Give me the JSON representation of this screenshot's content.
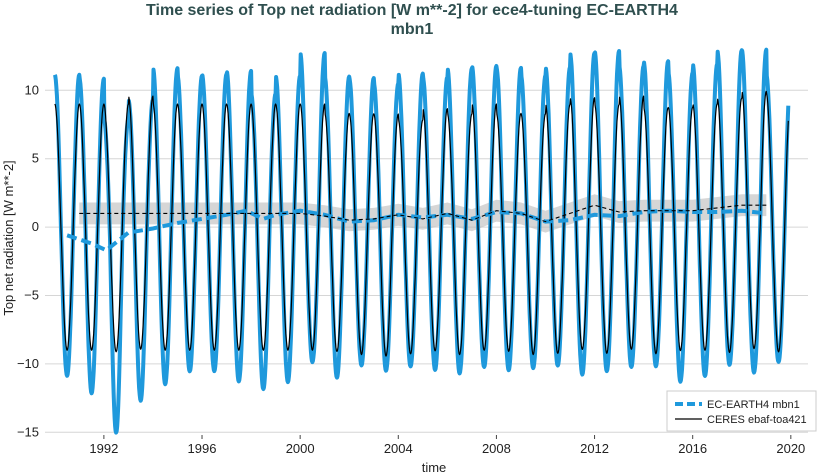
{
  "chart_data": {
    "type": "line",
    "title_line1": "Time series of Top net radiation [W m**-2] for ece4-tuning EC-EARTH4",
    "title_line2": "mbn1",
    "xlabel": "time",
    "ylabel": "Top net radiation [W m**-2]",
    "xlim": [
      1989.6,
      2020.7
    ],
    "ylim": [
      -15.2,
      12.8
    ],
    "xticks": [
      1992,
      1996,
      2000,
      2004,
      2008,
      2012,
      2016,
      2020
    ],
    "yticks": [
      -15,
      -10,
      -5,
      0,
      5,
      10
    ],
    "grid": "horizontal",
    "legend": "bottom-right",
    "colors": {
      "model": "#1f99dc",
      "obs": "#000000",
      "band": "#b4b4b4"
    },
    "series": [
      {
        "name": "EC-EARTH4 mbn1",
        "style": "thick-line",
        "monthly_start": 1990.0,
        "monthly_end": 2019.9,
        "seasonal_peaks": [
          11.1,
          11.0,
          8.7,
          9.7,
          11.6,
          11.0,
          11.1,
          11.4,
          10.0,
          11.1,
          12.4,
          11.0,
          10.8,
          10.5,
          11.1,
          10.9,
          11.5,
          11.6,
          11.5,
          11.0,
          11.5,
          12.5,
          12.6,
          11.6,
          11.9,
          11.3,
          11.8,
          12.6,
          12.7,
          11.0
        ],
        "seasonal_troughs": [
          -10.9,
          -12.0,
          -14.2,
          -12.3,
          -11.5,
          -10.6,
          -10.6,
          -11.3,
          -11.6,
          -11.3,
          -10.2,
          -11.0,
          -10.2,
          -10.5,
          -10.3,
          -10.5,
          -10.8,
          -10.4,
          -10.6,
          -10.4,
          -10.3,
          -11.0,
          -10.8,
          -10.4,
          -10.4,
          -11.3,
          -11.0,
          -10.4,
          -10.9,
          -10.0
        ]
      },
      {
        "name": "EC-EARTH4 mbn1",
        "style": "dashed-annual-mean",
        "x": [
          1990.5,
          1991.5,
          1992.1,
          1993.0,
          1994.0,
          1995.0,
          1996.0,
          1997.0,
          1997.8,
          1998.5,
          1999.0,
          2000.0,
          2001.0,
          2002.0,
          2003.0,
          2004.0,
          2005.0,
          2006.0,
          2007.0,
          2008.0,
          2009.0,
          2010.0,
          2011.0,
          2012.0,
          2013.0,
          2014.0,
          2015.0,
          2016.0,
          2017.0,
          2018.0,
          2019.0
        ],
        "y": [
          -0.6,
          -1.2,
          -1.7,
          -0.4,
          -0.1,
          0.3,
          0.6,
          0.9,
          1.2,
          0.6,
          0.9,
          1.2,
          0.9,
          0.4,
          0.5,
          0.9,
          0.7,
          0.9,
          0.6,
          1.1,
          1.0,
          0.4,
          0.5,
          0.9,
          0.8,
          1.1,
          1.2,
          1.1,
          1.1,
          1.2,
          1.0
        ]
      },
      {
        "name": "CERES ebaf-toa421",
        "style": "thin-line",
        "monthly_start": 1990.0,
        "monthly_end": 2019.9,
        "seasonal_peaks": [
          9.0,
          9.0,
          9.0,
          9.5,
          9.0,
          9.0,
          9.0,
          9.0,
          9.0,
          9.0,
          9.0,
          8.4,
          8.4,
          8.4,
          8.0,
          8.7,
          8.4,
          9.0,
          8.4,
          8.4,
          9.0,
          9.4,
          9.0,
          9.5,
          8.8,
          8.8,
          9.0,
          9.4,
          9.8,
          9.7
        ],
        "seasonal_troughs": [
          -9.0,
          -9.0,
          -9.1,
          -9.0,
          -9.0,
          -9.0,
          -9.0,
          -9.0,
          -9.0,
          -9.0,
          -9.0,
          -9.0,
          -9.2,
          -9.3,
          -9.1,
          -9.0,
          -9.2,
          -9.0,
          -9.0,
          -9.2,
          -9.2,
          -9.0,
          -9.2,
          -9.0,
          -9.2,
          -9.0,
          -9.0,
          -9.2,
          -9.0,
          -9.2
        ]
      },
      {
        "name": "CERES ebaf-toa421",
        "style": "dashed-annual-mean",
        "x": [
          1991.0,
          1992.0,
          1993.0,
          1994.0,
          1995.0,
          1996.0,
          1997.0,
          1998.0,
          1999.0,
          2000.0,
          2001.0,
          2002.0,
          2003.0,
          2004.0,
          2005.0,
          2006.0,
          2007.0,
          2008.0,
          2009.0,
          2010.0,
          2011.0,
          2012.0,
          2013.0,
          2014.0,
          2015.0,
          2016.0,
          2017.0,
          2018.0,
          2019.0
        ],
        "y": [
          1.0,
          1.0,
          1.0,
          1.0,
          1.0,
          1.0,
          1.0,
          1.0,
          1.0,
          1.0,
          0.8,
          0.5,
          0.6,
          0.9,
          0.6,
          1.0,
          0.5,
          1.2,
          1.0,
          0.4,
          1.0,
          1.6,
          1.1,
          1.2,
          1.2,
          1.2,
          1.4,
          1.6,
          1.6
        ],
        "band_halfwidth": 0.8
      }
    ]
  }
}
